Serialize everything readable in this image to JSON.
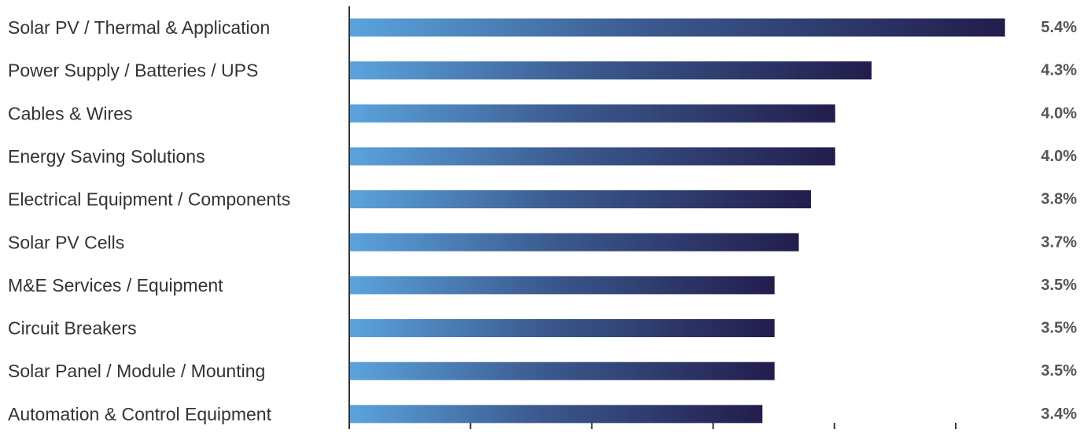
{
  "chart_data": {
    "type": "bar",
    "orientation": "horizontal",
    "categories": [
      "Solar PV / Thermal & Application",
      "Power Supply / Batteries / UPS",
      "Cables & Wires",
      "Energy Saving Solutions",
      "Electrical Equipment / Components",
      "Solar PV Cells",
      "M&E Services / Equipment",
      "Circuit Breakers",
      "Solar Panel / Module / Mounting",
      "Automation & Control Equipment"
    ],
    "values": [
      5.4,
      4.3,
      4.0,
      4.0,
      3.8,
      3.7,
      3.5,
      3.5,
      3.5,
      3.4
    ],
    "value_labels": [
      "5.4%",
      "4.3%",
      "4.0%",
      "4.0%",
      "3.8%",
      "3.7%",
      "3.5%",
      "3.5%",
      "3.5%",
      "3.4%"
    ],
    "unit": "%",
    "xlim": [
      0,
      6
    ],
    "x_tick_step": 1,
    "grid": false,
    "legend": false,
    "colors": {
      "bar_gradient_start": "#5ba3dd",
      "bar_gradient_mid": "#3b5a8f",
      "bar_gradient_end": "#221d4c",
      "axis": "#333333",
      "category_text": "#333333",
      "value_text": "#555555"
    }
  }
}
